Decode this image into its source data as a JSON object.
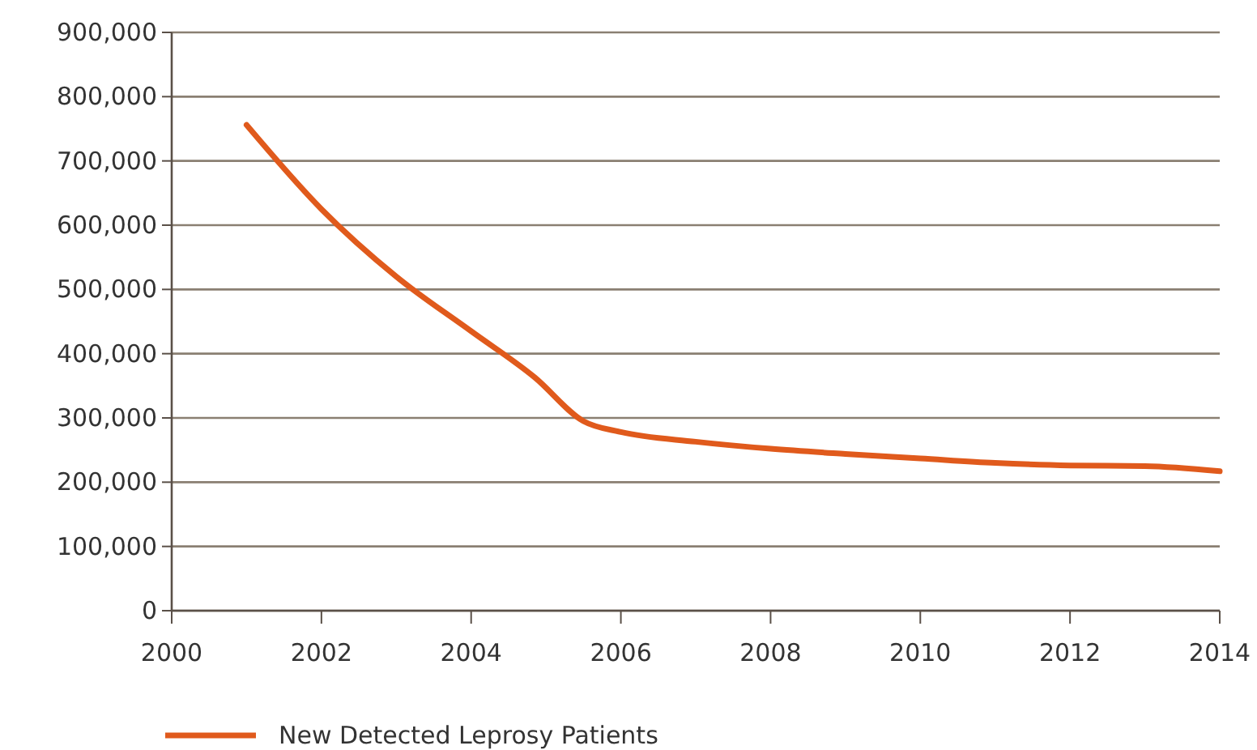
{
  "chart_data": {
    "type": "line",
    "x": [
      2001,
      2002,
      2003,
      2004,
      2004.85,
      2005.5,
      2006,
      2007,
      2008,
      2009,
      2010,
      2011,
      2012,
      2013,
      2014
    ],
    "series": [
      {
        "name": "New Detected Leprosy Patients",
        "color": "#e05a1c",
        "values": [
          756000,
          625000,
          520000,
          435000,
          363000,
          295000,
          278000,
          263000,
          252000,
          244000,
          237000,
          230000,
          226000,
          225000,
          217000
        ]
      }
    ],
    "xlim": [
      2000,
      2014
    ],
    "xticks": [
      2000,
      2002,
      2004,
      2006,
      2008,
      2010,
      2012,
      2014
    ],
    "ylim": [
      0,
      900000
    ],
    "yticks": [
      {
        "value": 0,
        "label": "0"
      },
      {
        "value": 100000,
        "label": "100,000"
      },
      {
        "value": 200000,
        "label": "200,000"
      },
      {
        "value": 300000,
        "label": "300,000"
      },
      {
        "value": 400000,
        "label": "400,000"
      },
      {
        "value": 500000,
        "label": "500,000"
      },
      {
        "value": 600000,
        "label": "600,000"
      },
      {
        "value": 700000,
        "label": "700,000"
      },
      {
        "value": 800000,
        "label": "800,000"
      },
      {
        "value": 900000,
        "label": "900,000"
      }
    ],
    "grid": "y",
    "legend": "bottom",
    "marker": "none",
    "line_style": "solid"
  }
}
